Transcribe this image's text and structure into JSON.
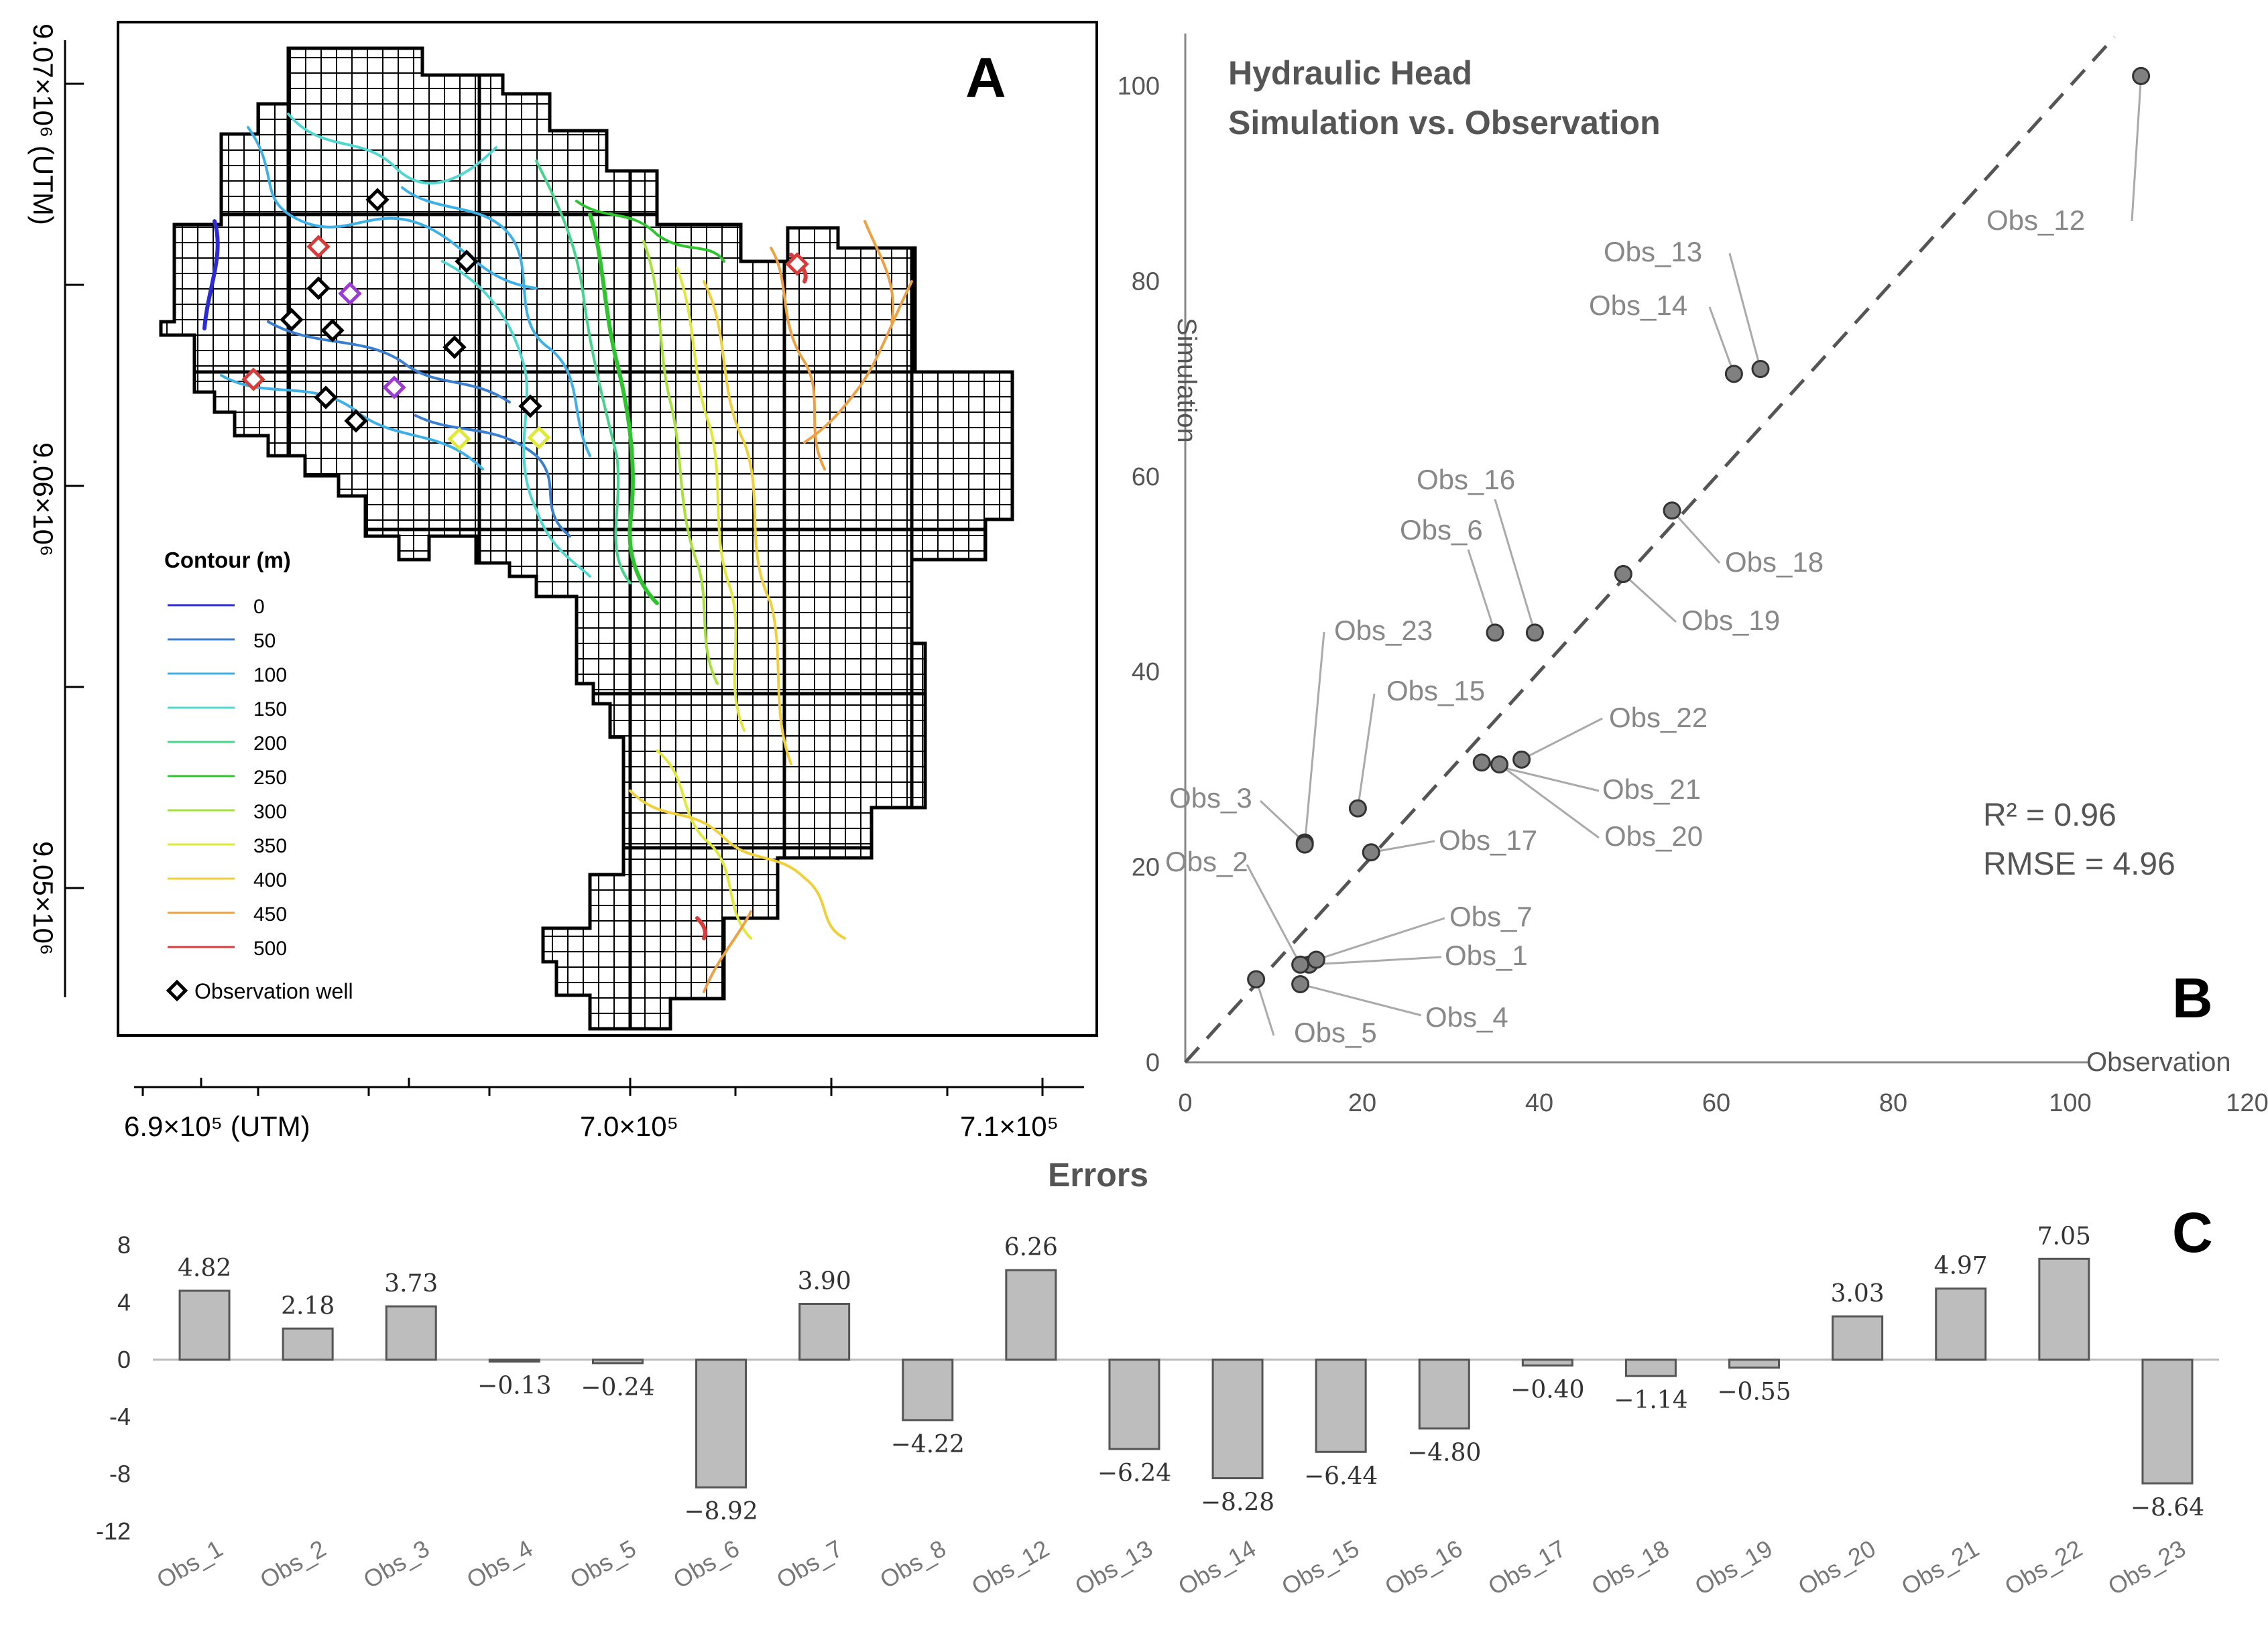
{
  "chart_data": [
    {
      "type": "map",
      "panel_letter": "A",
      "x_ticks": [
        "6.9×10⁵ (UTM)",
        "7.0×10⁵",
        "7.1×10⁵"
      ],
      "y_ticks": [
        "9.07×10⁶ (UTM)",
        "9.06×10⁶",
        "9.05×10⁶"
      ],
      "legend_title": "Contour (m)",
      "legend": [
        {
          "label": "0",
          "color": "#2b2bd6"
        },
        {
          "label": "50",
          "color": "#3a7ed0"
        },
        {
          "label": "100",
          "color": "#3db0e6"
        },
        {
          "label": "150",
          "color": "#4fd7d0"
        },
        {
          "label": "200",
          "color": "#44d48a"
        },
        {
          "label": "250",
          "color": "#2ec42e"
        },
        {
          "label": "300",
          "color": "#a6e23a"
        },
        {
          "label": "350",
          "color": "#e0e83a"
        },
        {
          "label": "400",
          "color": "#efcf3a"
        },
        {
          "label": "450",
          "color": "#efa040"
        },
        {
          "label": "500",
          "color": "#d93a3a"
        }
      ],
      "well_legend": "Observation well"
    },
    {
      "type": "scatter",
      "panel_letter": "B",
      "title_lines": [
        "Hydraulic Head",
        "Simulation vs. Observation"
      ],
      "xlabel": "Observation",
      "ylabel": "Simulation",
      "xlim": [
        0,
        120
      ],
      "ylim": [
        0,
        100
      ],
      "x_ticks": [
        0,
        20,
        40,
        60,
        80,
        100,
        120
      ],
      "y_ticks": [
        0,
        20,
        40,
        60,
        80,
        100
      ],
      "stats": [
        "R² = 0.96",
        "RMSE = 4.96"
      ],
      "points": [
        {
          "name": "Obs_1",
          "x": 14.0,
          "y": 10.0
        },
        {
          "name": "Obs_2",
          "x": 13.0,
          "y": 10.0
        },
        {
          "name": "Obs_3",
          "x": 13.5,
          "y": 22.5
        },
        {
          "name": "Obs_4",
          "x": 13.0,
          "y": 8.0
        },
        {
          "name": "Obs_5",
          "x": 8.0,
          "y": 8.5
        },
        {
          "name": "Obs_6",
          "x": 35.0,
          "y": 44.0
        },
        {
          "name": "Obs_7",
          "x": 14.8,
          "y": 10.5
        },
        {
          "name": "Obs_12",
          "x": 108.0,
          "y": 101.0
        },
        {
          "name": "Obs_13",
          "x": 65.0,
          "y": 71.0
        },
        {
          "name": "Obs_14",
          "x": 62.0,
          "y": 70.5
        },
        {
          "name": "Obs_15",
          "x": 19.5,
          "y": 26.0
        },
        {
          "name": "Obs_16",
          "x": 39.5,
          "y": 44.0
        },
        {
          "name": "Obs_17",
          "x": 21.0,
          "y": 21.5
        },
        {
          "name": "Obs_18",
          "x": 55.0,
          "y": 56.5
        },
        {
          "name": "Obs_19",
          "x": 49.5,
          "y": 50.0
        },
        {
          "name": "Obs_20",
          "x": 35.5,
          "y": 30.5
        },
        {
          "name": "Obs_21",
          "x": 33.5,
          "y": 30.7
        },
        {
          "name": "Obs_22",
          "x": 38.0,
          "y": 31.0
        },
        {
          "name": "Obs_23",
          "x": 13.5,
          "y": 22.3
        }
      ],
      "reference_line": [
        [
          0,
          0
        ],
        [
          105,
          105
        ]
      ]
    },
    {
      "type": "bar",
      "panel_letter": "C",
      "title": "Errors",
      "ylim": [
        -12,
        8
      ],
      "y_ticks": [
        8,
        4,
        0,
        -4,
        -8,
        -12
      ],
      "categories": [
        "Obs_1",
        "Obs_2",
        "Obs_3",
        "Obs_4",
        "Obs_5",
        "Obs_6",
        "Obs_7",
        "Obs_8",
        "Obs_12",
        "Obs_13",
        "Obs_14",
        "Obs_15",
        "Obs_16",
        "Obs_17",
        "Obs_18",
        "Obs_19",
        "Obs_20",
        "Obs_21",
        "Obs_22",
        "Obs_23"
      ],
      "values": [
        4.82,
        2.18,
        3.73,
        -0.13,
        -0.24,
        -8.92,
        3.9,
        -4.22,
        6.26,
        -6.24,
        -8.28,
        -6.44,
        -4.8,
        -0.4,
        -1.14,
        -0.55,
        3.03,
        4.97,
        7.05,
        -8.64
      ],
      "value_labels": [
        "4.82",
        "2.18",
        "3.73",
        "−0.13",
        "−0.24",
        "−8.92",
        "3.90",
        "−4.22",
        "6.26",
        "−6.24",
        "−8.28",
        "−6.44",
        "−4.80",
        "−0.40",
        "−1.14",
        "−0.55",
        "3.03",
        "4.97",
        "7.05",
        "−8.64"
      ]
    }
  ]
}
